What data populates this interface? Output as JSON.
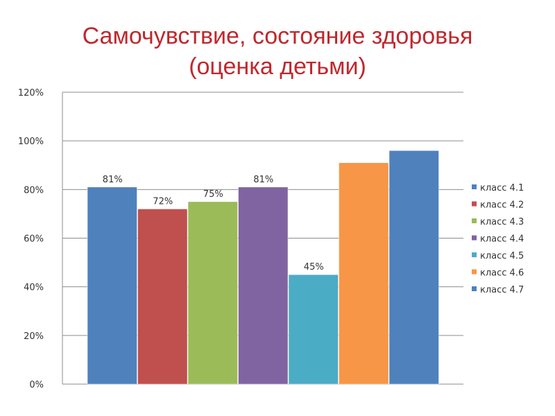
{
  "slide": {
    "title_line1": "Самочувствие, состояние здоровья",
    "title_line2": "(оценка детьми)",
    "title_color": "#c0272d"
  },
  "chart_data": {
    "type": "bar",
    "title": "",
    "xlabel": "",
    "ylabel": "",
    "ylim": [
      0,
      120
    ],
    "yticks": [
      0,
      20,
      40,
      60,
      80,
      100,
      120
    ],
    "ytick_format": "percent",
    "grid": true,
    "legend": "right",
    "series": [
      {
        "name": "класс 4.1",
        "value": 81,
        "label": "81%",
        "color": "#4f81bd"
      },
      {
        "name": "класс 4.2",
        "value": 72,
        "label": "72%",
        "color": "#c0504d"
      },
      {
        "name": "класс 4.3",
        "value": 75,
        "label": "75%",
        "color": "#9bbb59"
      },
      {
        "name": "класс 4.4",
        "value": 81,
        "label": "81%",
        "color": "#8064a2"
      },
      {
        "name": "класс 4.5",
        "value": 45,
        "label": "45%",
        "color": "#4bacc6"
      },
      {
        "name": "класс 4.6",
        "value": 91,
        "label": "",
        "color": "#f79646"
      },
      {
        "name": "класс 4.7",
        "value": 96,
        "label": "",
        "color": "#4f81bd"
      }
    ]
  }
}
